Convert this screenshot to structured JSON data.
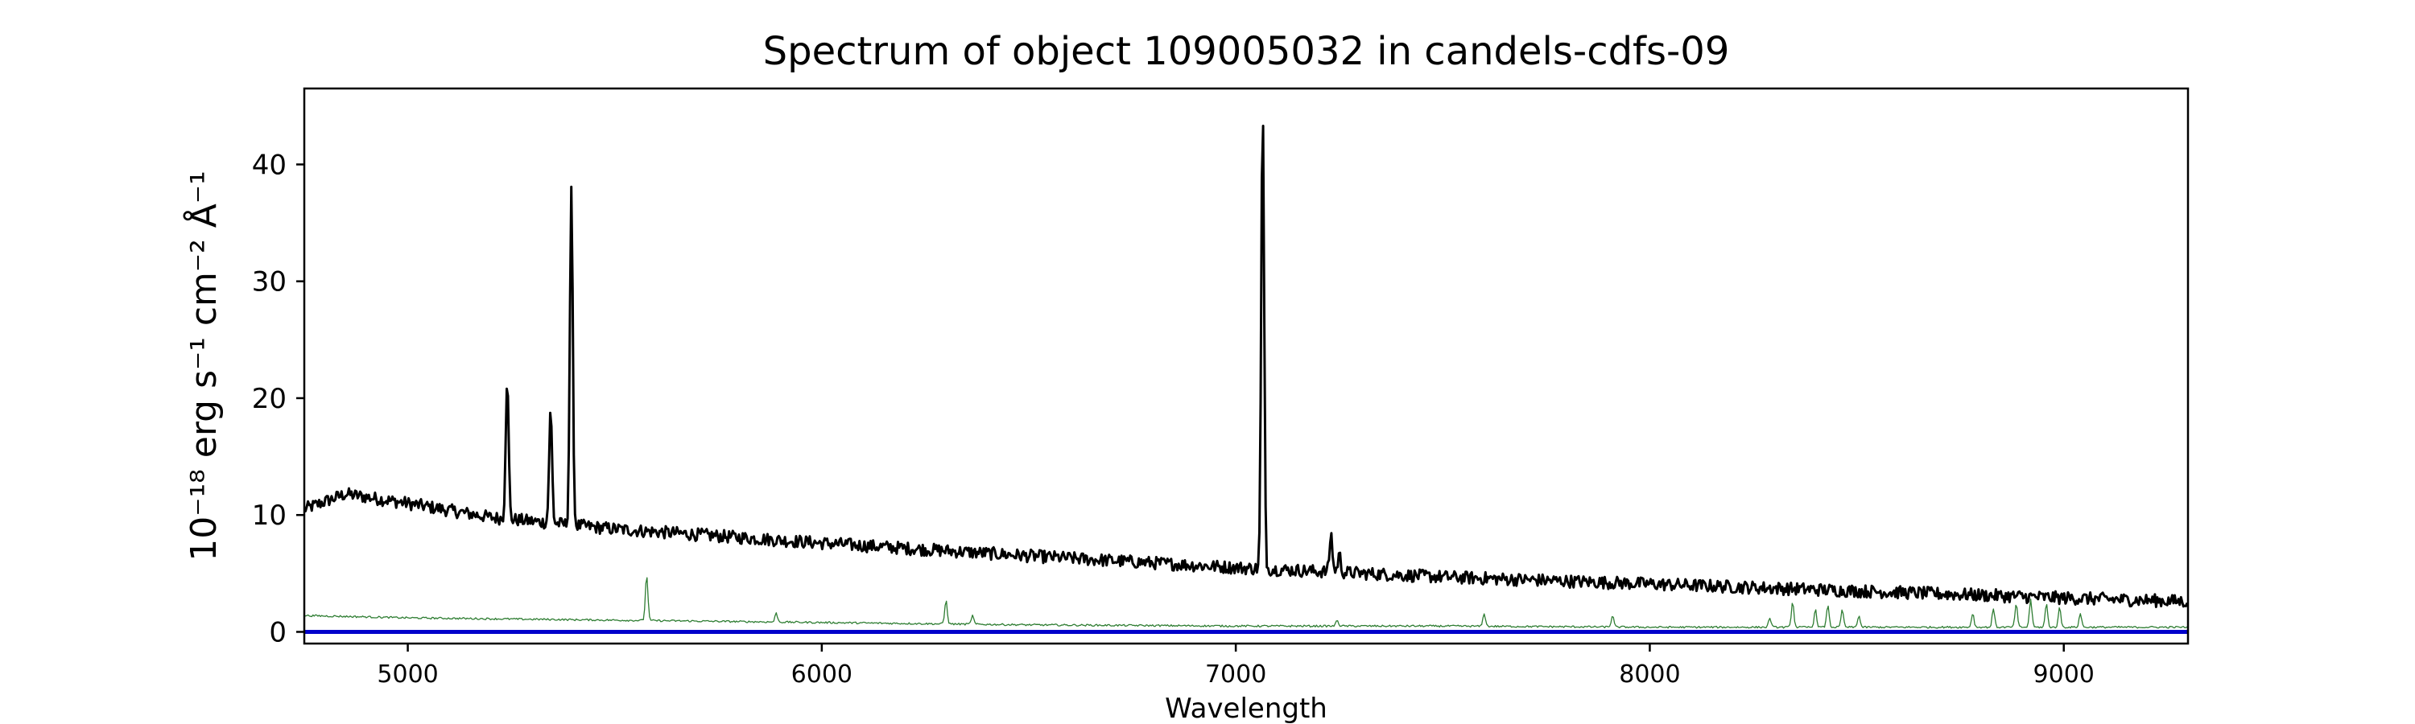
{
  "chart_data": {
    "type": "line",
    "title": "Spectrum of object 109005032 in candels-cdfs-09",
    "xlabel": "Wavelength",
    "ylabel": "10⁻¹⁸ erg s⁻¹ cm⁻² Å⁻¹",
    "xlim": [
      4750,
      9300
    ],
    "ylim": [
      -1,
      46.5
    ],
    "xticks": [
      5000,
      6000,
      7000,
      8000,
      9000
    ],
    "yticks": [
      0,
      10,
      20,
      30,
      40
    ],
    "grid": false,
    "series": [
      {
        "color": "#000000",
        "continuum": [
          [
            4750,
            10.5
          ],
          [
            4850,
            11.8
          ],
          [
            5000,
            11.0
          ],
          [
            5200,
            9.8
          ],
          [
            5500,
            8.8
          ],
          [
            6000,
            7.6
          ],
          [
            6500,
            6.5
          ],
          [
            7000,
            5.5
          ],
          [
            7500,
            4.7
          ],
          [
            8000,
            4.1
          ],
          [
            8500,
            3.5
          ],
          [
            9000,
            2.9
          ],
          [
            9300,
            2.6
          ]
        ],
        "emission_lines": [
          [
            5240,
            21.7
          ],
          [
            5345,
            18.9
          ],
          [
            5395,
            37.6
          ],
          [
            7065,
            44.6
          ],
          [
            7230,
            8.3
          ],
          [
            7250,
            6.6
          ]
        ]
      },
      {
        "color": "#2e7d32",
        "continuum": [
          [
            4750,
            1.4
          ],
          [
            5000,
            1.2
          ],
          [
            5500,
            1.0
          ],
          [
            6000,
            0.8
          ],
          [
            6500,
            0.6
          ],
          [
            7000,
            0.5
          ],
          [
            7500,
            0.5
          ],
          [
            8000,
            0.4
          ],
          [
            8500,
            0.4
          ],
          [
            9000,
            0.4
          ],
          [
            9300,
            0.4
          ]
        ],
        "emission_lines": [
          [
            5577,
            4.9
          ],
          [
            5890,
            1.6
          ],
          [
            6300,
            2.7
          ],
          [
            6364,
            1.4
          ],
          [
            7245,
            1.0
          ],
          [
            7600,
            1.6
          ],
          [
            7910,
            1.4
          ],
          [
            8290,
            1.2
          ],
          [
            8345,
            2.6
          ],
          [
            8400,
            1.9
          ],
          [
            8430,
            2.3
          ],
          [
            8465,
            1.9
          ],
          [
            8505,
            1.4
          ],
          [
            8780,
            1.6
          ],
          [
            8830,
            2.0
          ],
          [
            8885,
            2.4
          ],
          [
            8920,
            2.8
          ],
          [
            8958,
            2.4
          ],
          [
            8990,
            2.1
          ],
          [
            9040,
            1.6
          ]
        ]
      },
      {
        "color": "#0000cc",
        "continuum": [
          [
            4750,
            0.0
          ],
          [
            9300,
            0.0
          ]
        ],
        "emission_lines": []
      }
    ]
  }
}
